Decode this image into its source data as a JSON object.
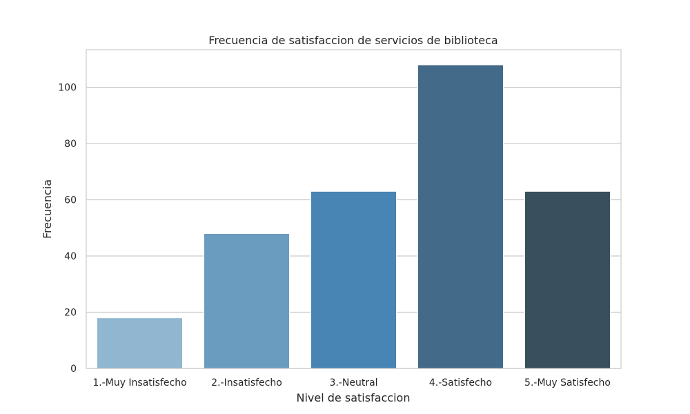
{
  "chart_data": {
    "type": "bar",
    "title": "Frecuencia de satisfaccion de servicios de biblioteca",
    "xlabel": "Nivel de satisfaccion",
    "ylabel": "Frecuencia",
    "categories": [
      "1.-Muy Insatisfecho",
      "2.-Insatisfecho",
      "3.-Neutral",
      "4.-Satisfecho",
      "5.-Muy Satisfecho"
    ],
    "values": [
      18,
      48,
      63,
      108,
      63
    ],
    "colors": [
      "#90b6d0",
      "#6a9cc0",
      "#4884b4",
      "#436a88",
      "#3a4f5e"
    ],
    "ylim": [
      0,
      113.4
    ],
    "yticks": [
      0,
      20,
      40,
      60,
      80,
      100
    ],
    "grid": true,
    "grid_axis": "y",
    "legend": false
  }
}
